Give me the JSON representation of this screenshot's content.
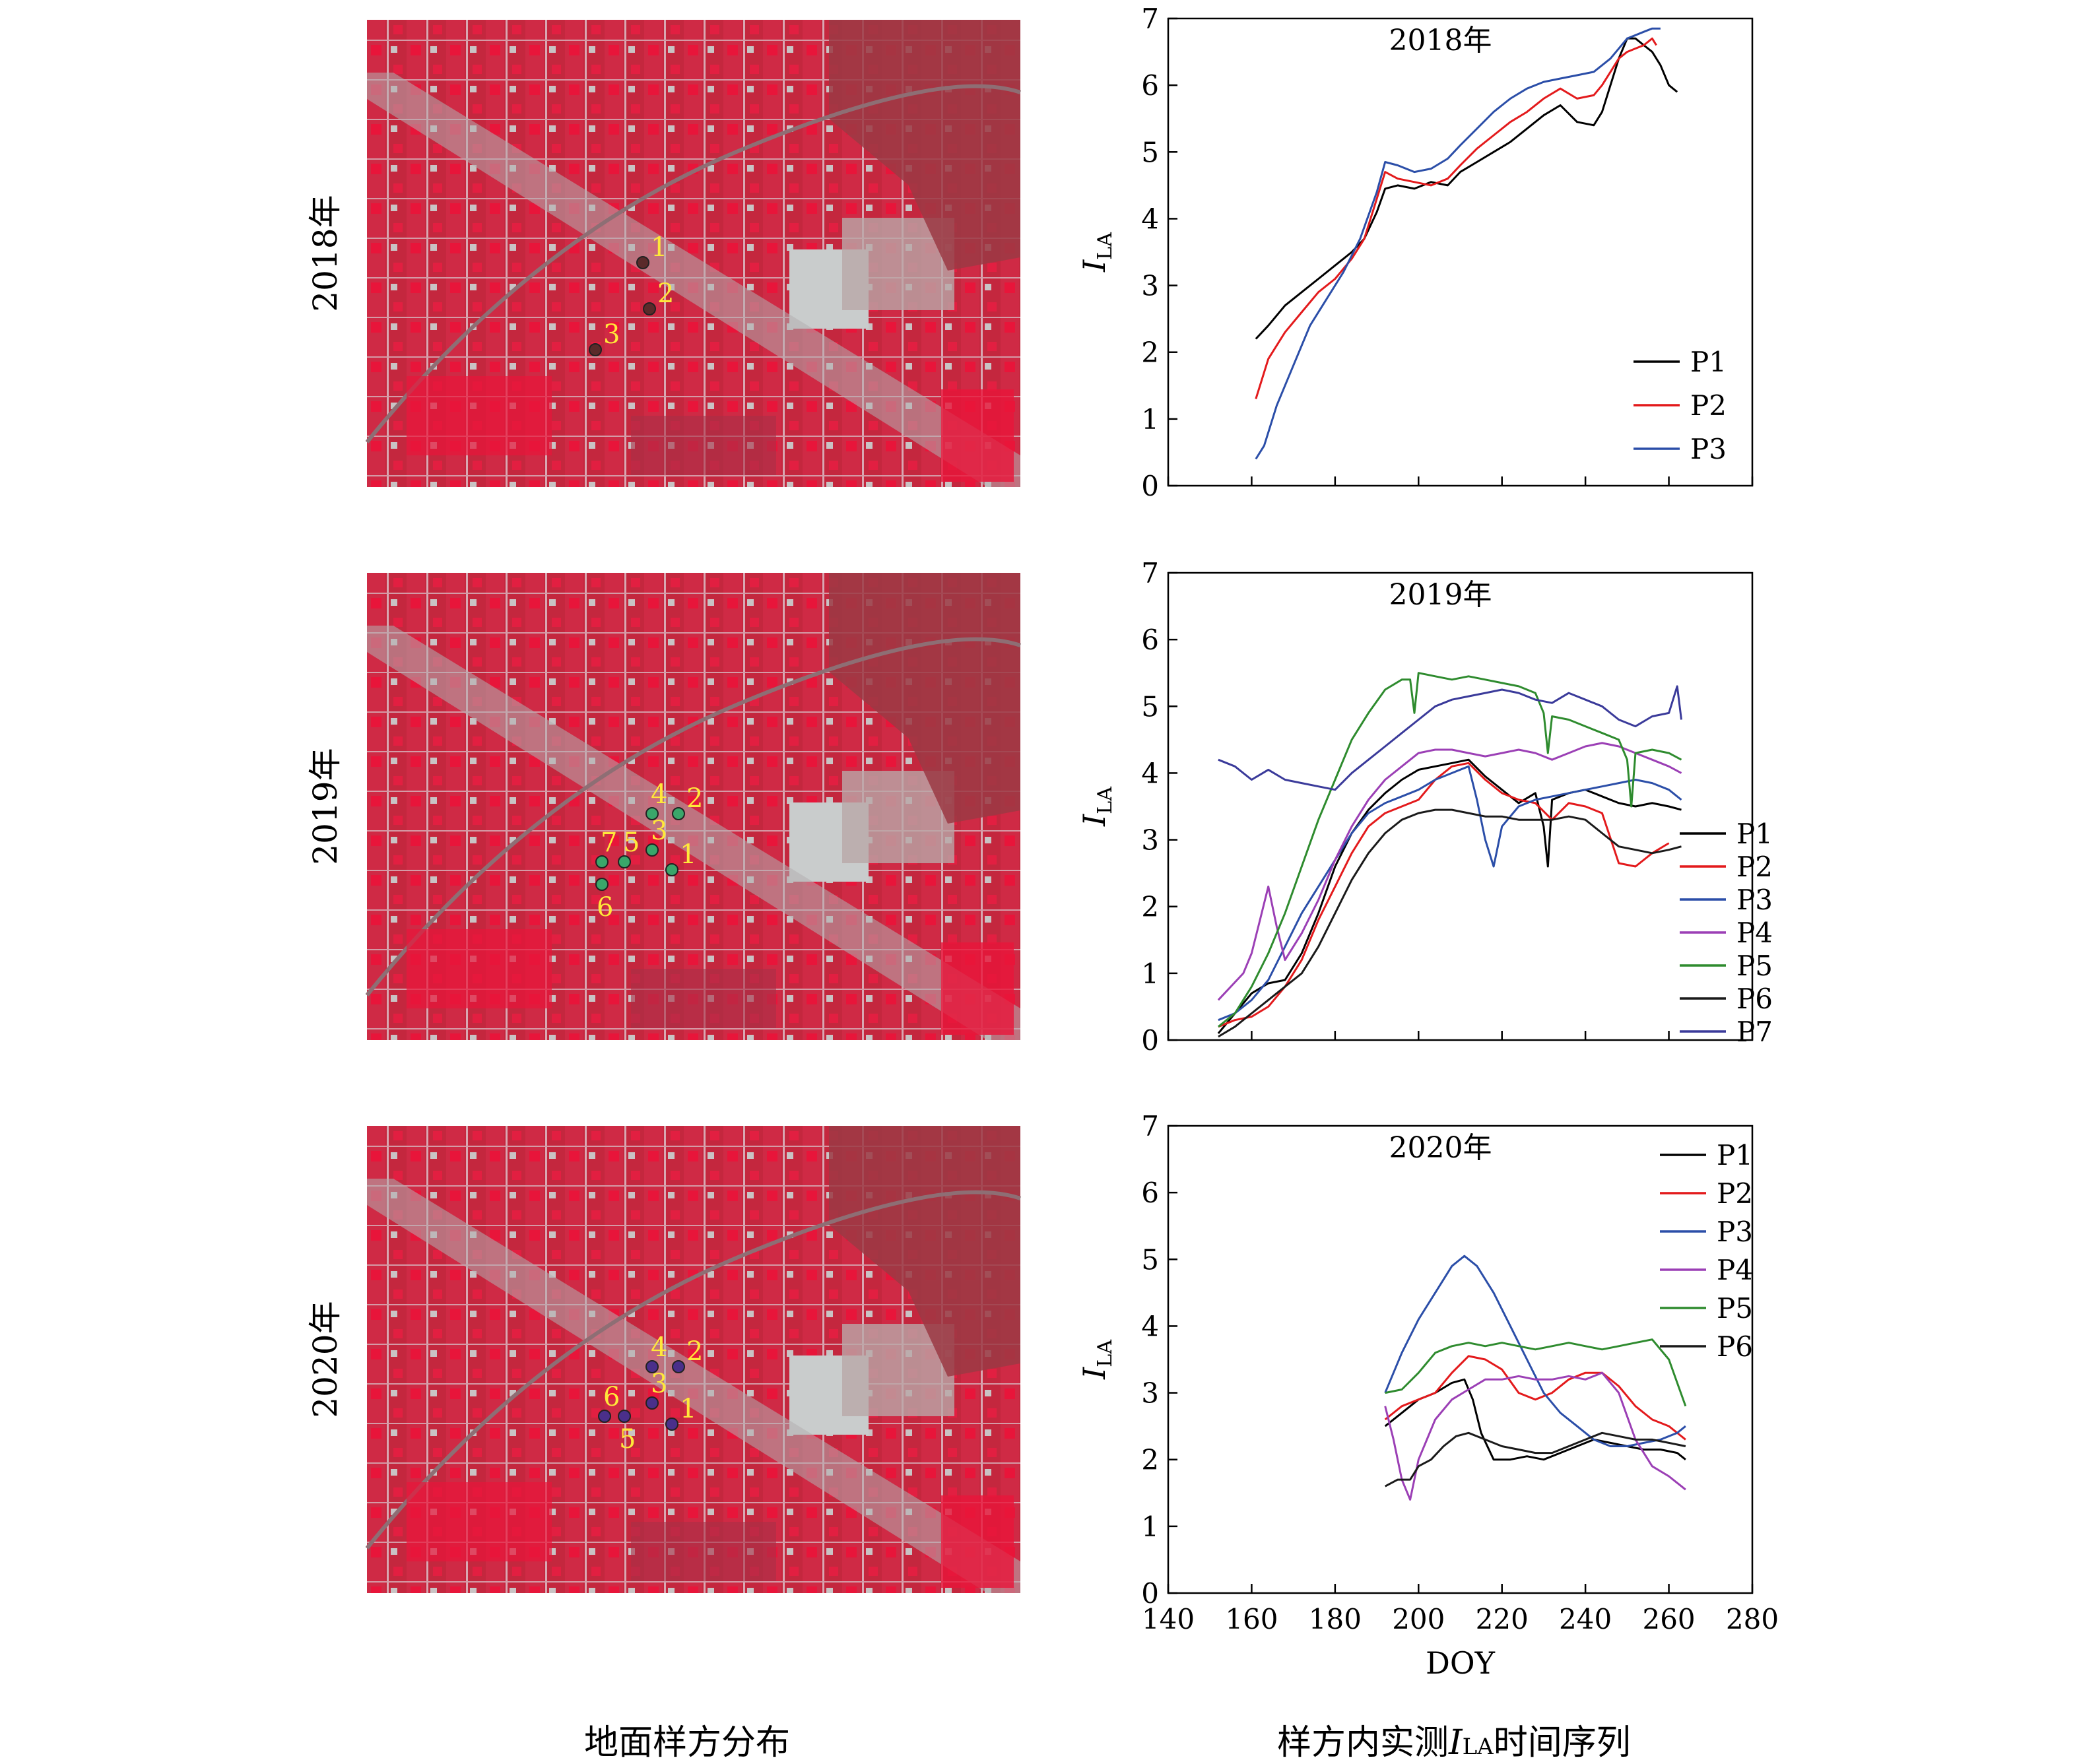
{
  "captions": {
    "left": "地面样方分布",
    "right_prefix": "样方内实测",
    "right_var": "I",
    "right_sub": "LA",
    "right_suffix": "时间序列"
  },
  "map_rows": [
    {
      "year_label": "2018年",
      "marker_color": "#5a2a2a",
      "markers": [
        {
          "label": "1"
        },
        {
          "label": "2"
        },
        {
          "label": "3"
        }
      ]
    },
    {
      "year_label": "2019年",
      "marker_color": "#3aa66a",
      "markers": [
        {
          "label": "1"
        },
        {
          "label": "2"
        },
        {
          "label": "3"
        },
        {
          "label": "4"
        },
        {
          "label": "5"
        },
        {
          "label": "6"
        },
        {
          "label": "7"
        }
      ]
    },
    {
      "year_label": "2020年",
      "marker_color": "#4a2f8a",
      "markers": [
        {
          "label": "1"
        },
        {
          "label": "2"
        },
        {
          "label": "3"
        },
        {
          "label": "4"
        },
        {
          "label": "5"
        },
        {
          "label": "6"
        }
      ]
    }
  ],
  "map_colors": {
    "field": "#c4273e",
    "bright": "#e8153a",
    "soil": "#9b3a44",
    "urban": "#c9cccc",
    "road": "#b2aeb1"
  },
  "label_color": "#ffe83a",
  "chart_data": [
    {
      "type": "line",
      "title": "2018年",
      "ylabel": "I",
      "ylabel_sub": "LA",
      "xlabel": "",
      "xlim": [
        140,
        280
      ],
      "ylim": [
        0,
        7
      ],
      "yticks": [
        "0",
        "1",
        "2",
        "3",
        "4",
        "5",
        "6",
        "7"
      ],
      "xticks": [],
      "legend_placement": "bottom-right",
      "series": [
        {
          "name": "P1",
          "color": "#000000",
          "x": [
            161,
            164,
            168,
            172,
            176,
            180,
            184,
            187,
            190,
            192,
            195,
            199,
            203,
            207,
            210,
            214,
            218,
            222,
            226,
            230,
            234,
            238,
            242,
            244,
            246,
            248,
            250,
            252,
            254,
            256,
            258,
            260,
            262
          ],
          "y": [
            2.2,
            2.4,
            2.7,
            2.9,
            3.1,
            3.3,
            3.5,
            3.7,
            4.1,
            4.45,
            4.5,
            4.45,
            4.55,
            4.5,
            4.7,
            4.85,
            5.0,
            5.15,
            5.35,
            5.55,
            5.7,
            5.45,
            5.4,
            5.6,
            6.0,
            6.4,
            6.7,
            6.7,
            6.6,
            6.5,
            6.3,
            6.0,
            5.9
          ]
        },
        {
          "name": "P2",
          "color": "#e31a1c",
          "x": [
            161,
            164,
            168,
            172,
            176,
            180,
            184,
            187,
            190,
            192,
            195,
            199,
            203,
            207,
            210,
            214,
            218,
            222,
            226,
            230,
            234,
            238,
            242,
            244,
            246,
            248,
            250,
            252,
            254,
            256,
            257
          ],
          "y": [
            1.3,
            1.9,
            2.3,
            2.6,
            2.9,
            3.1,
            3.4,
            3.7,
            4.3,
            4.7,
            4.6,
            4.55,
            4.5,
            4.6,
            4.8,
            5.05,
            5.25,
            5.45,
            5.6,
            5.8,
            5.95,
            5.8,
            5.85,
            6.0,
            6.2,
            6.4,
            6.5,
            6.55,
            6.6,
            6.7,
            6.6
          ]
        },
        {
          "name": "P3",
          "color": "#2b4ea8",
          "x": [
            161,
            163,
            166,
            170,
            174,
            178,
            182,
            186,
            190,
            192,
            195,
            199,
            203,
            207,
            210,
            214,
            218,
            222,
            226,
            230,
            234,
            238,
            242,
            246,
            250,
            252,
            254,
            256,
            258
          ],
          "y": [
            0.4,
            0.6,
            1.2,
            1.8,
            2.4,
            2.8,
            3.2,
            3.7,
            4.4,
            4.85,
            4.8,
            4.7,
            4.75,
            4.9,
            5.1,
            5.35,
            5.6,
            5.8,
            5.95,
            6.05,
            6.1,
            6.15,
            6.2,
            6.4,
            6.7,
            6.75,
            6.8,
            6.85,
            6.85
          ]
        }
      ]
    },
    {
      "type": "line",
      "title": "2019年",
      "ylabel": "I",
      "ylabel_sub": "LA",
      "xlabel": "",
      "xlim": [
        140,
        280
      ],
      "ylim": [
        0,
        7
      ],
      "yticks": [
        "0",
        "1",
        "2",
        "3",
        "4",
        "5",
        "6",
        "7"
      ],
      "xticks": [],
      "legend_placement": "right",
      "series": [
        {
          "name": "P1",
          "color": "#000000",
          "x": [
            152,
            156,
            160,
            164,
            168,
            172,
            176,
            180,
            184,
            188,
            192,
            196,
            200,
            204,
            208,
            212,
            216,
            220,
            224,
            228,
            230,
            231,
            232,
            236,
            240,
            244,
            248,
            252,
            256,
            260,
            263
          ],
          "y": [
            0.1,
            0.4,
            0.7,
            0.85,
            0.9,
            1.3,
            1.9,
            2.6,
            3.1,
            3.45,
            3.7,
            3.9,
            4.05,
            4.1,
            4.15,
            4.2,
            3.95,
            3.75,
            3.55,
            3.7,
            3.2,
            2.6,
            3.6,
            3.7,
            3.75,
            3.65,
            3.55,
            3.5,
            3.55,
            3.5,
            3.45
          ]
        },
        {
          "name": "P2",
          "color": "#e31a1c",
          "x": [
            152,
            156,
            160,
            164,
            168,
            172,
            176,
            180,
            184,
            188,
            192,
            196,
            200,
            204,
            208,
            212,
            216,
            220,
            224,
            228,
            232,
            236,
            240,
            244,
            248,
            252,
            256,
            260
          ],
          "y": [
            0.2,
            0.3,
            0.35,
            0.5,
            0.8,
            1.2,
            1.8,
            2.3,
            2.8,
            3.2,
            3.4,
            3.5,
            3.6,
            3.9,
            4.1,
            4.15,
            3.9,
            3.7,
            3.6,
            3.55,
            3.3,
            3.55,
            3.5,
            3.4,
            2.65,
            2.6,
            2.8,
            2.95
          ]
        },
        {
          "name": "P3",
          "color": "#2b4ea8",
          "x": [
            152,
            156,
            160,
            164,
            168,
            172,
            176,
            180,
            184,
            188,
            192,
            196,
            200,
            204,
            208,
            212,
            214,
            216,
            218,
            220,
            224,
            228,
            232,
            236,
            240,
            244,
            248,
            252,
            256,
            260,
            263
          ],
          "y": [
            0.3,
            0.4,
            0.6,
            0.9,
            1.4,
            1.9,
            2.3,
            2.7,
            3.1,
            3.4,
            3.55,
            3.65,
            3.75,
            3.9,
            4.0,
            4.1,
            3.6,
            3.0,
            2.6,
            3.2,
            3.5,
            3.6,
            3.65,
            3.7,
            3.75,
            3.8,
            3.85,
            3.9,
            3.85,
            3.75,
            3.6
          ]
        },
        {
          "name": "P4",
          "color": "#9b3fb5",
          "x": [
            152,
            155,
            158,
            160,
            162,
            164,
            166,
            168,
            172,
            176,
            180,
            184,
            188,
            192,
            196,
            200,
            204,
            208,
            212,
            216,
            220,
            224,
            228,
            232,
            236,
            240,
            244,
            248,
            252,
            256,
            260,
            263
          ],
          "y": [
            0.6,
            0.8,
            1.0,
            1.3,
            1.8,
            2.3,
            1.7,
            1.2,
            1.6,
            2.1,
            2.7,
            3.2,
            3.6,
            3.9,
            4.1,
            4.3,
            4.35,
            4.35,
            4.3,
            4.25,
            4.3,
            4.35,
            4.3,
            4.2,
            4.3,
            4.4,
            4.45,
            4.4,
            4.3,
            4.2,
            4.1,
            4.0
          ]
        },
        {
          "name": "P5",
          "color": "#2e8b2e",
          "x": [
            152,
            156,
            160,
            164,
            168,
            172,
            176,
            180,
            184,
            188,
            192,
            196,
            198,
            199,
            200,
            204,
            208,
            212,
            216,
            220,
            224,
            228,
            230,
            231,
            232,
            236,
            240,
            244,
            248,
            250,
            251,
            252,
            256,
            260,
            263
          ],
          "y": [
            0.2,
            0.4,
            0.8,
            1.3,
            1.9,
            2.6,
            3.3,
            3.9,
            4.5,
            4.9,
            5.25,
            5.4,
            5.4,
            4.9,
            5.5,
            5.45,
            5.4,
            5.45,
            5.4,
            5.35,
            5.3,
            5.2,
            4.9,
            4.3,
            4.85,
            4.8,
            4.7,
            4.6,
            4.5,
            4.2,
            3.5,
            4.3,
            4.35,
            4.3,
            4.2
          ]
        },
        {
          "name": "P6",
          "color": "#1a1a1a",
          "x": [
            152,
            156,
            160,
            164,
            168,
            172,
            176,
            180,
            184,
            188,
            192,
            196,
            200,
            204,
            208,
            212,
            216,
            220,
            224,
            228,
            232,
            236,
            240,
            244,
            248,
            252,
            256,
            260,
            263
          ],
          "y": [
            0.05,
            0.2,
            0.4,
            0.6,
            0.8,
            1.0,
            1.4,
            1.9,
            2.4,
            2.8,
            3.1,
            3.3,
            3.4,
            3.45,
            3.45,
            3.4,
            3.35,
            3.35,
            3.3,
            3.3,
            3.3,
            3.35,
            3.3,
            3.1,
            2.9,
            2.85,
            2.8,
            2.85,
            2.9
          ]
        },
        {
          "name": "P7",
          "color": "#3a3a9a",
          "x": [
            152,
            156,
            160,
            164,
            168,
            172,
            176,
            180,
            184,
            188,
            192,
            196,
            200,
            204,
            208,
            212,
            216,
            220,
            224,
            228,
            232,
            236,
            240,
            244,
            248,
            252,
            256,
            260,
            262,
            263
          ],
          "y": [
            4.2,
            4.1,
            3.9,
            4.05,
            3.9,
            3.85,
            3.8,
            3.75,
            4.0,
            4.2,
            4.4,
            4.6,
            4.8,
            5.0,
            5.1,
            5.15,
            5.2,
            5.25,
            5.2,
            5.1,
            5.05,
            5.2,
            5.1,
            5.0,
            4.8,
            4.7,
            4.85,
            4.9,
            5.3,
            4.8
          ]
        }
      ]
    },
    {
      "type": "line",
      "title": "2020年",
      "ylabel": "I",
      "ylabel_sub": "LA",
      "xlabel": "DOY",
      "xlim": [
        140,
        280
      ],
      "ylim": [
        0,
        7
      ],
      "yticks": [
        "0",
        "1",
        "2",
        "3",
        "4",
        "5",
        "6",
        "7"
      ],
      "xticks": [
        "140",
        "160",
        "180",
        "200",
        "220",
        "240",
        "260",
        "280"
      ],
      "legend_placement": "top-right",
      "series": [
        {
          "name": "P1",
          "color": "#000000",
          "x": [
            192,
            196,
            200,
            204,
            208,
            211,
            213,
            215,
            218,
            222,
            226,
            230,
            234,
            238,
            242,
            246,
            250,
            254,
            258,
            262,
            264
          ],
          "y": [
            2.5,
            2.7,
            2.9,
            3.0,
            3.15,
            3.2,
            2.9,
            2.4,
            2.0,
            2.0,
            2.05,
            2.0,
            2.1,
            2.2,
            2.3,
            2.25,
            2.2,
            2.15,
            2.15,
            2.1,
            2.0
          ]
        },
        {
          "name": "P2",
          "color": "#e31a1c",
          "x": [
            192,
            196,
            200,
            204,
            208,
            212,
            216,
            220,
            224,
            228,
            232,
            236,
            240,
            244,
            248,
            252,
            256,
            260,
            264
          ],
          "y": [
            2.6,
            2.8,
            2.9,
            3.0,
            3.3,
            3.55,
            3.5,
            3.35,
            3.0,
            2.9,
            3.0,
            3.2,
            3.3,
            3.3,
            3.1,
            2.8,
            2.6,
            2.5,
            2.3
          ]
        },
        {
          "name": "P3",
          "color": "#2b4ea8",
          "x": [
            192,
            196,
            200,
            204,
            208,
            211,
            214,
            218,
            222,
            226,
            230,
            234,
            238,
            242,
            246,
            250,
            254,
            258,
            262,
            264
          ],
          "y": [
            3.0,
            3.6,
            4.1,
            4.5,
            4.9,
            5.05,
            4.9,
            4.5,
            4.0,
            3.5,
            3.0,
            2.7,
            2.5,
            2.3,
            2.2,
            2.2,
            2.25,
            2.3,
            2.4,
            2.5
          ]
        },
        {
          "name": "P4",
          "color": "#9b3fb5",
          "x": [
            192,
            194,
            196,
            198,
            200,
            204,
            208,
            212,
            216,
            220,
            224,
            228,
            232,
            236,
            240,
            244,
            248,
            252,
            256,
            260,
            264
          ],
          "y": [
            2.8,
            2.3,
            1.7,
            1.4,
            2.0,
            2.6,
            2.9,
            3.05,
            3.2,
            3.2,
            3.25,
            3.2,
            3.2,
            3.25,
            3.2,
            3.3,
            3.0,
            2.3,
            1.9,
            1.75,
            1.55
          ]
        },
        {
          "name": "P5",
          "color": "#2e8b2e",
          "x": [
            192,
            196,
            200,
            204,
            208,
            212,
            216,
            220,
            224,
            228,
            232,
            236,
            240,
            244,
            248,
            252,
            256,
            260,
            264
          ],
          "y": [
            3.0,
            3.05,
            3.3,
            3.6,
            3.7,
            3.75,
            3.7,
            3.75,
            3.7,
            3.65,
            3.7,
            3.75,
            3.7,
            3.65,
            3.7,
            3.75,
            3.8,
            3.5,
            2.8
          ]
        },
        {
          "name": "P6",
          "color": "#1a1a1a",
          "x": [
            192,
            195,
            198,
            200,
            203,
            206,
            209,
            212,
            216,
            220,
            224,
            228,
            232,
            236,
            240,
            244,
            248,
            252,
            256,
            260,
            264
          ],
          "y": [
            1.6,
            1.7,
            1.7,
            1.9,
            2.0,
            2.2,
            2.35,
            2.4,
            2.3,
            2.2,
            2.15,
            2.1,
            2.1,
            2.2,
            2.3,
            2.4,
            2.35,
            2.3,
            2.3,
            2.25,
            2.2
          ]
        }
      ]
    }
  ]
}
